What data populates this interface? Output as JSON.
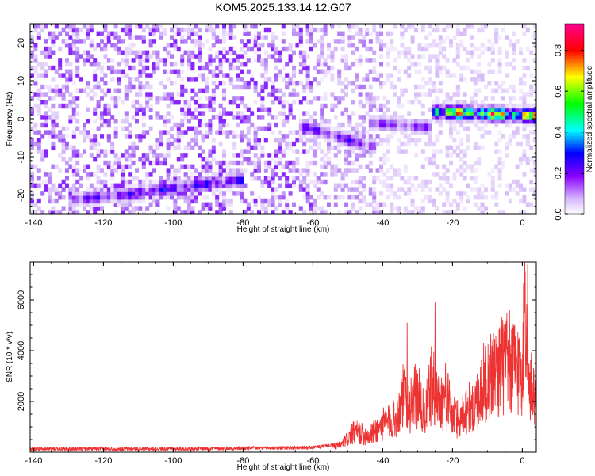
{
  "title": "KOM5.2025.133.14.12.G07",
  "colors": {
    "snr_line": "#ee3333",
    "spectrogram_palette": [
      "#ffffff",
      "#c9a6f7",
      "#7a00ff",
      "#0000ff",
      "#00ffff",
      "#00ff00",
      "#ffff00",
      "#ff0000",
      "#ff00aa"
    ]
  },
  "chart_data": [
    {
      "type": "heatmap",
      "title": "KOM5.2025.133.14.12.G07",
      "xlabel": "Height of straight line (km)",
      "ylabel": "Frequency (Hz)",
      "colorbar_label": "Normalized spectral amplitude",
      "xlim": [
        -141,
        4
      ],
      "ylim": [
        -25,
        25
      ],
      "clim": [
        0,
        0.93
      ],
      "xticks": [
        "-140",
        "-120",
        "-100",
        "-80",
        "-60",
        "-40",
        "-20",
        "0"
      ],
      "yticks": [
        "-20",
        "-10",
        "0",
        "10",
        "20"
      ],
      "cticks": [
        "0.0",
        "0.2",
        "0.4",
        "0.6",
        "0.8"
      ],
      "ridges": [
        {
          "x_start": -128,
          "x_end": -110,
          "freq_start": -21,
          "freq_end": -19.5,
          "peak_amplitude": 0.3
        },
        {
          "x_start": -108,
          "x_end": -82,
          "freq_start": -19,
          "freq_end": -16,
          "peak_amplitude": 0.35
        },
        {
          "x_start": -62,
          "x_end": -44,
          "freq_start": -2,
          "freq_end": -7,
          "peak_amplitude": 0.3
        },
        {
          "x_start": -42,
          "x_end": -28,
          "freq_start": -1,
          "freq_end": -2,
          "peak_amplitude": 0.25
        },
        {
          "x_start": -24,
          "x_end": 4,
          "freq_start": 2,
          "freq_end": 1,
          "peak_amplitude": 0.9
        }
      ],
      "background_noise_amplitude": 0.1
    },
    {
      "type": "line",
      "xlabel": "Height of straight line (km)",
      "ylabel": "SNR (10 * v/v)",
      "xlim": [
        -141,
        4
      ],
      "ylim": [
        0,
        7500
      ],
      "xticks": [
        "-140",
        "-120",
        "-100",
        "-80",
        "-60",
        "-40",
        "-20",
        "0"
      ],
      "yticks": [
        "2000",
        "4000",
        "6000"
      ],
      "x": [
        -141,
        -100,
        -60,
        -52,
        -48,
        -44,
        -40,
        -36,
        -34,
        -32,
        -30,
        -28,
        -26,
        -24,
        -22,
        -20,
        -18,
        -16,
        -14,
        -12,
        -10,
        -8,
        -6,
        -4,
        -2,
        0,
        1,
        2,
        3,
        4
      ],
      "y": [
        100,
        100,
        150,
        300,
        900,
        700,
        1200,
        1500,
        2500,
        2000,
        2600,
        1500,
        3000,
        2200,
        2500,
        1600,
        1400,
        2000,
        1800,
        2800,
        3200,
        3500,
        3800,
        3900,
        3700,
        3600,
        7400,
        2500,
        2900,
        2200
      ],
      "peaks": [
        {
          "x": -33,
          "y": 5100
        },
        {
          "x": -25,
          "y": 5900
        },
        {
          "x": 1.5,
          "y": 7400
        }
      ]
    }
  ]
}
